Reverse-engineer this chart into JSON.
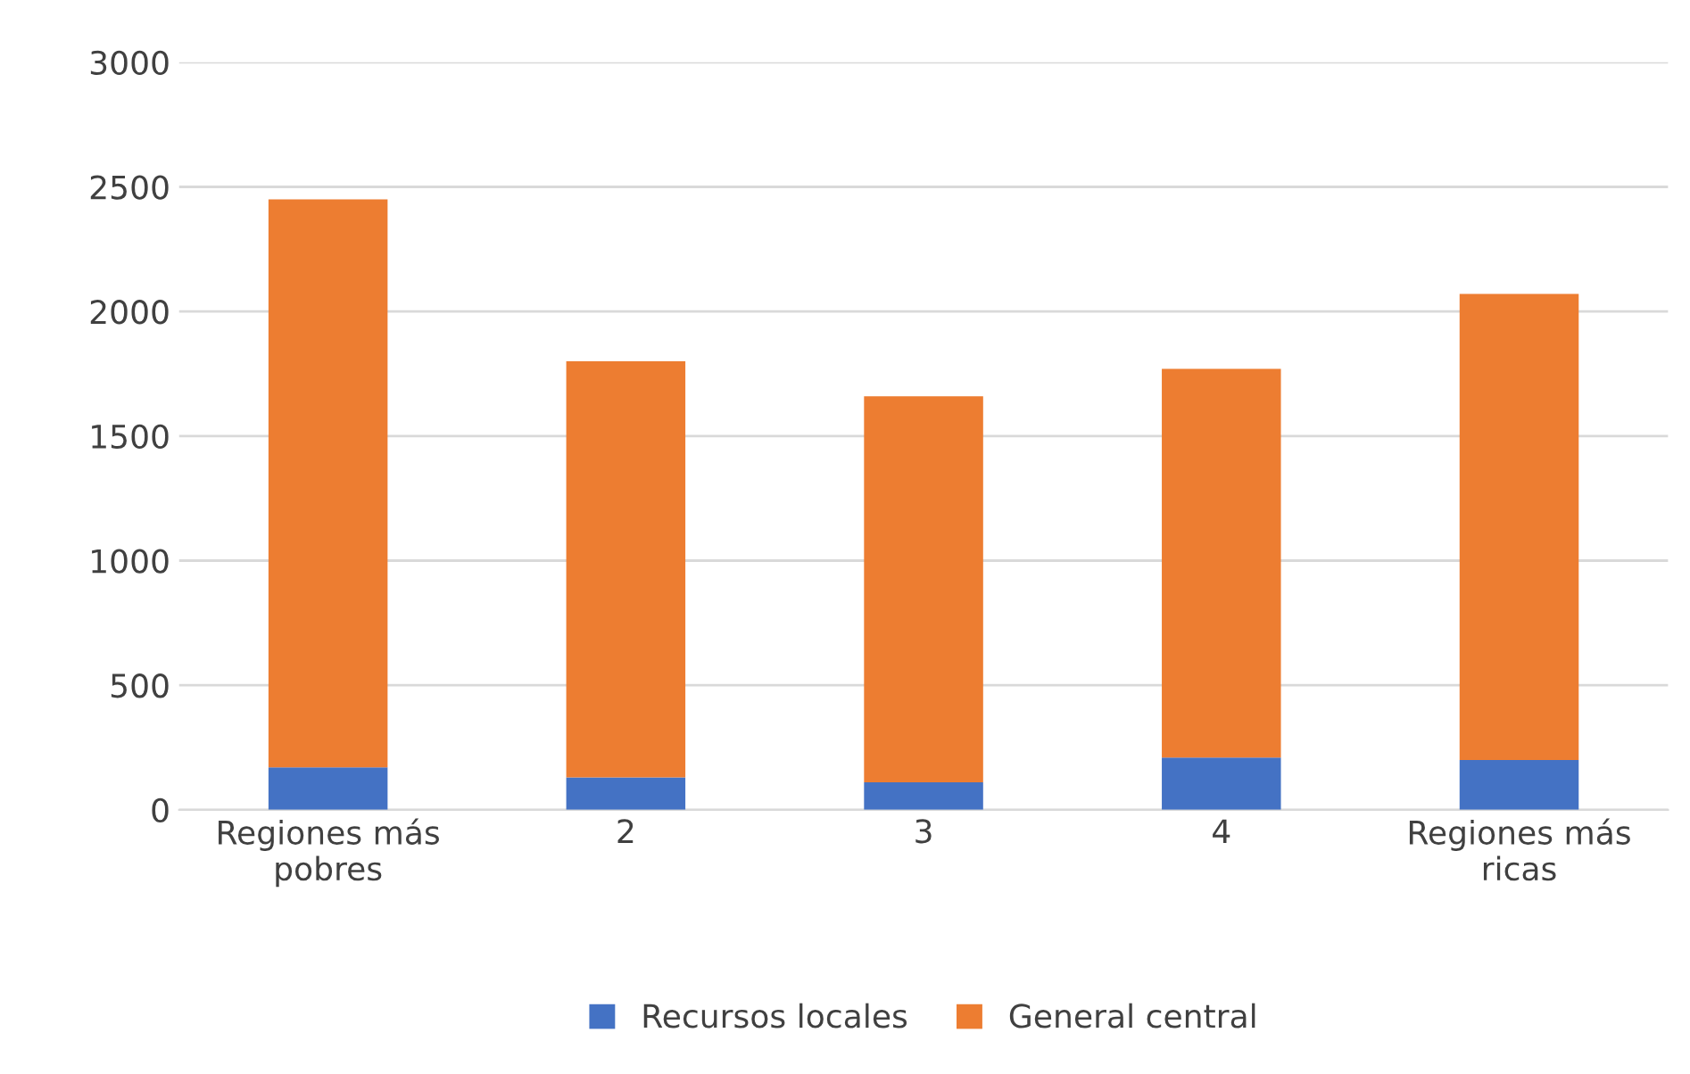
{
  "chart_data": {
    "type": "bar",
    "stacked": true,
    "categories": [
      "Regiones más\npobres",
      "2",
      "3",
      "4",
      "Regiones más\nricas"
    ],
    "series": [
      {
        "name": "Recursos locales",
        "color": "#4472c4",
        "values": [
          170,
          130,
          110,
          210,
          200
        ]
      },
      {
        "name": "General central",
        "color": "#ed7d31",
        "values": [
          2280,
          1670,
          1550,
          1560,
          1870
        ]
      }
    ],
    "ylim": [
      0,
      3000
    ],
    "yticks": [
      0,
      500,
      1000,
      1500,
      2000,
      2500,
      3000
    ],
    "grid": "y",
    "legend": "bottom"
  }
}
